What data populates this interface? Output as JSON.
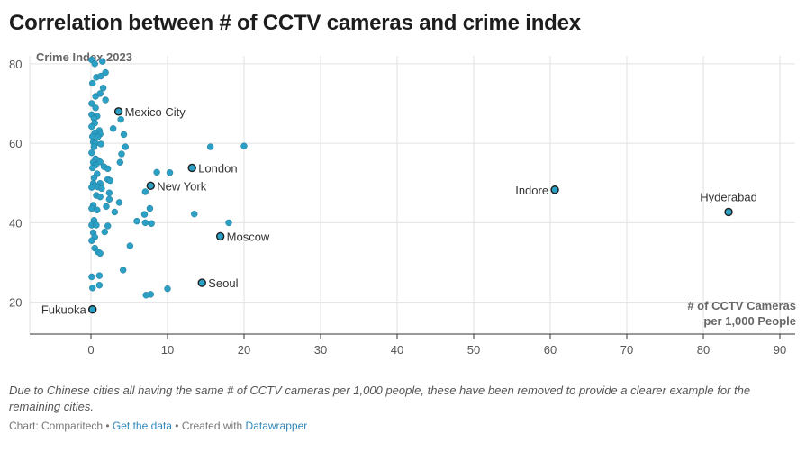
{
  "title": "Correlation between # of CCTV cameras and crime index",
  "note": "Due to Chinese cities all having the same # of CCTV cameras per 1,000 people, these have been removed to provide a clearer example for the remaining cities.",
  "footer": {
    "source": "Chart: Comparitech",
    "sep1": " • ",
    "link": "Get the data",
    "sep2": " • Created with ",
    "tool": "Datawrapper"
  },
  "colors": {
    "point": "#2b9fc4",
    "point_stroke": "#1a6e8a",
    "highlight_stroke": "#1d1d1d",
    "grid": "#e2e2e2",
    "axis": "#333333"
  },
  "chart_data": {
    "type": "scatter",
    "ylabel": "Crime Index 2023",
    "xlabel_lines": [
      "# of CCTV Cameras",
      "per 1,000 People"
    ],
    "xlim": [
      -8,
      92
    ],
    "ylim": [
      12,
      82
    ],
    "x_ticks": [
      0,
      10,
      20,
      30,
      40,
      50,
      60,
      70,
      80,
      90
    ],
    "y_ticks": [
      20,
      40,
      60,
      80
    ],
    "grid": true,
    "labeled_points": [
      {
        "label": "Mexico City",
        "x": 3.6,
        "y": 68.0,
        "label_side": "right"
      },
      {
        "label": "London",
        "x": 13.2,
        "y": 53.8,
        "label_side": "right"
      },
      {
        "label": "New York",
        "x": 7.8,
        "y": 49.3,
        "label_side": "right"
      },
      {
        "label": "Moscow",
        "x": 16.9,
        "y": 36.6,
        "label_side": "right"
      },
      {
        "label": "Seoul",
        "x": 14.5,
        "y": 24.9,
        "label_side": "right"
      },
      {
        "label": "Fukuoka",
        "x": 0.2,
        "y": 18.2,
        "label_side": "left"
      },
      {
        "label": "Indore",
        "x": 60.6,
        "y": 48.3,
        "label_side": "left"
      },
      {
        "label": "Hyderabad",
        "x": 83.3,
        "y": 42.7,
        "label_side": "above"
      }
    ],
    "points": [
      [
        0.1,
        81.0
      ],
      [
        1.5,
        80.6
      ],
      [
        0.5,
        80.0
      ],
      [
        1.9,
        77.8
      ],
      [
        0.7,
        76.6
      ],
      [
        1.3,
        76.9
      ],
      [
        0.2,
        75.1
      ],
      [
        1.6,
        73.9
      ],
      [
        1.2,
        72.5
      ],
      [
        0.6,
        71.8
      ],
      [
        1.9,
        70.9
      ],
      [
        0.1,
        70.0
      ],
      [
        0.6,
        68.9
      ],
      [
        0.1,
        67.2
      ],
      [
        0.8,
        66.8
      ],
      [
        0.4,
        66.3
      ],
      [
        3.9,
        66.0
      ],
      [
        0.5,
        65.1
      ],
      [
        0.1,
        64.2
      ],
      [
        2.9,
        63.7
      ],
      [
        1.1,
        63.2
      ],
      [
        0.5,
        62.6
      ],
      [
        1.2,
        62.3
      ],
      [
        4.3,
        62.2
      ],
      [
        0.2,
        61.7
      ],
      [
        0.9,
        61.6
      ],
      [
        0.3,
        60.3
      ],
      [
        0.6,
        60.0
      ],
      [
        1.3,
        59.8
      ],
      [
        0.4,
        59.1
      ],
      [
        4.5,
        59.1
      ],
      [
        15.6,
        59.1
      ],
      [
        20.0,
        59.3
      ],
      [
        0.1,
        57.6
      ],
      [
        4.0,
        57.3
      ],
      [
        0.6,
        56.1
      ],
      [
        0.9,
        55.7
      ],
      [
        0.3,
        55.2
      ],
      [
        1.2,
        55.3
      ],
      [
        3.8,
        55.2
      ],
      [
        0.6,
        54.5
      ],
      [
        1.7,
        54.1
      ],
      [
        0.2,
        53.8
      ],
      [
        2.2,
        53.6
      ],
      [
        8.6,
        52.7
      ],
      [
        10.3,
        52.6
      ],
      [
        0.8,
        52.3
      ],
      [
        0.4,
        51.3
      ],
      [
        2.2,
        50.9
      ],
      [
        2.5,
        50.6
      ],
      [
        0.3,
        49.9
      ],
      [
        1.2,
        49.9
      ],
      [
        0.5,
        49.3
      ],
      [
        0.9,
        49.0
      ],
      [
        0.1,
        48.9
      ],
      [
        1.4,
        48.6
      ],
      [
        7.1,
        47.8
      ],
      [
        2.4,
        47.5
      ],
      [
        0.7,
        46.9
      ],
      [
        1.2,
        46.5
      ],
      [
        2.4,
        45.9
      ],
      [
        3.7,
        45.1
      ],
      [
        0.3,
        44.4
      ],
      [
        2.0,
        44.1
      ],
      [
        0.1,
        43.6
      ],
      [
        7.7,
        43.6
      ],
      [
        0.8,
        43.2
      ],
      [
        3.1,
        42.7
      ],
      [
        7.0,
        42.1
      ],
      [
        13.5,
        42.2
      ],
      [
        0.4,
        40.6
      ],
      [
        6.0,
        40.4
      ],
      [
        7.1,
        40.0
      ],
      [
        7.9,
        39.8
      ],
      [
        18.0,
        40.0
      ],
      [
        0.1,
        39.4
      ],
      [
        0.7,
        39.4
      ],
      [
        2.2,
        39.2
      ],
      [
        1.8,
        37.7
      ],
      [
        0.3,
        37.5
      ],
      [
        0.5,
        36.4
      ],
      [
        0.1,
        35.5
      ],
      [
        5.1,
        34.2
      ],
      [
        0.5,
        33.6
      ],
      [
        0.9,
        32.7
      ],
      [
        1.2,
        32.3
      ],
      [
        4.2,
        28.1
      ],
      [
        0.1,
        26.4
      ],
      [
        1.1,
        26.7
      ],
      [
        1.1,
        24.3
      ],
      [
        0.2,
        23.6
      ],
      [
        10.0,
        23.4
      ],
      [
        7.8,
        22.0
      ],
      [
        7.2,
        21.8
      ]
    ]
  }
}
